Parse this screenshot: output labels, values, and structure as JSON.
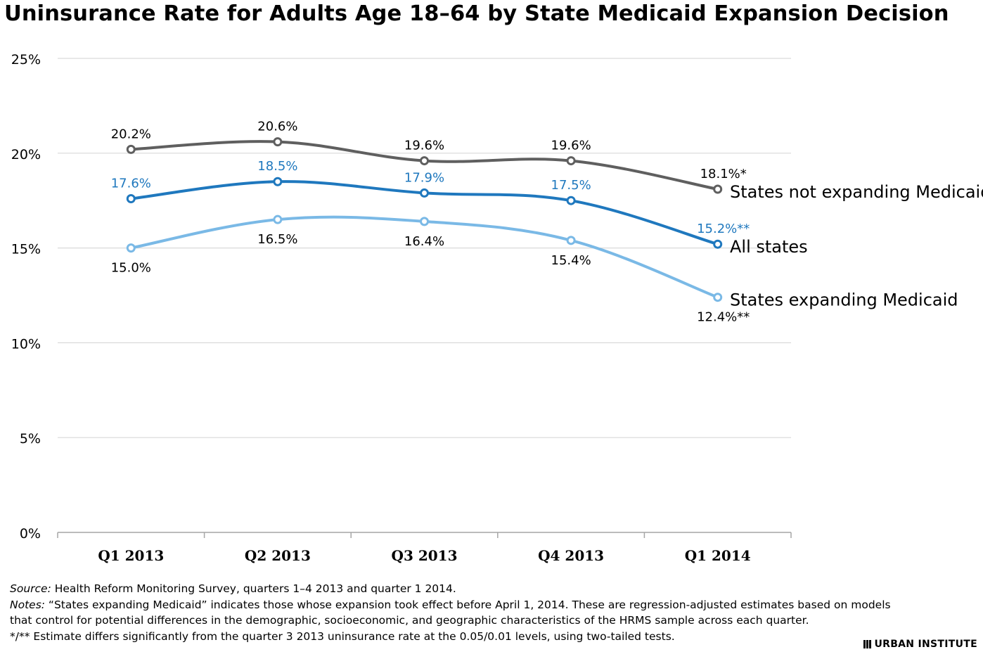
{
  "title": "Uninsurance Rate for Adults Age 18–64 by State Medicaid Expansion Decision",
  "chart_data": {
    "type": "line",
    "title": "Uninsurance Rate for Adults Age 18–64 by State Medicaid Expansion Decision",
    "categories": [
      "Q1 2013",
      "Q2 2013",
      "Q3 2013",
      "Q4 2013",
      "Q1 2014"
    ],
    "ylim": [
      0,
      25
    ],
    "yticks": [
      "0%",
      "5%",
      "10%",
      "15%",
      "20%",
      "25%"
    ],
    "ytick_values": [
      0,
      5,
      10,
      15,
      20,
      25
    ],
    "grid": true,
    "legend": "end-of-line labels",
    "series": [
      {
        "name": "States not expanding Medicaid",
        "color": "#5f5f5f",
        "label_color": "#000000",
        "values": [
          20.2,
          20.6,
          19.6,
          19.6,
          18.1
        ],
        "labels": [
          "20.2%",
          "20.6%",
          "19.6%",
          "19.6%",
          "18.1%*"
        ],
        "label_pos": [
          "above",
          "above",
          "above",
          "above",
          "above"
        ]
      },
      {
        "name": "All states",
        "color": "#1f78be",
        "label_color": "#1f78be",
        "values": [
          17.6,
          18.5,
          17.9,
          17.5,
          15.2
        ],
        "labels": [
          "17.6%",
          "18.5%",
          "17.9%",
          "17.5%",
          "15.2%**"
        ],
        "label_pos": [
          "above",
          "above",
          "above",
          "above",
          "above"
        ]
      },
      {
        "name": "States expanding Medicaid",
        "color": "#7ab9e6",
        "label_color": "#000000",
        "values": [
          15.0,
          16.5,
          16.4,
          15.4,
          12.4
        ],
        "labels": [
          "15.0%",
          "16.5%",
          "16.4%",
          "15.4%",
          "12.4%**"
        ],
        "label_pos": [
          "below",
          "below",
          "below",
          "below",
          "below"
        ]
      }
    ]
  },
  "footer": {
    "source_label": "Source:",
    "source_text": " Health Reform Monitoring Survey, quarters 1–4 2013 and quarter 1 2014.",
    "notes_label": "Notes:",
    "notes_line1": " “States expanding Medicaid” indicates those whose expansion took effect before April 1, 2014. These are regression-adjusted estimates based on models",
    "notes_line2": "that control for potential differences in the demographic, socioeconomic, and geographic characteristics of the  HRMS sample across each quarter.",
    "notes_line3": " */** Estimate differs significantly from the quarter 3 2013 uninsurance rate at the 0.05/0.01 levels, using two-tailed tests."
  },
  "logo_text": "URBAN INSTITUTE"
}
